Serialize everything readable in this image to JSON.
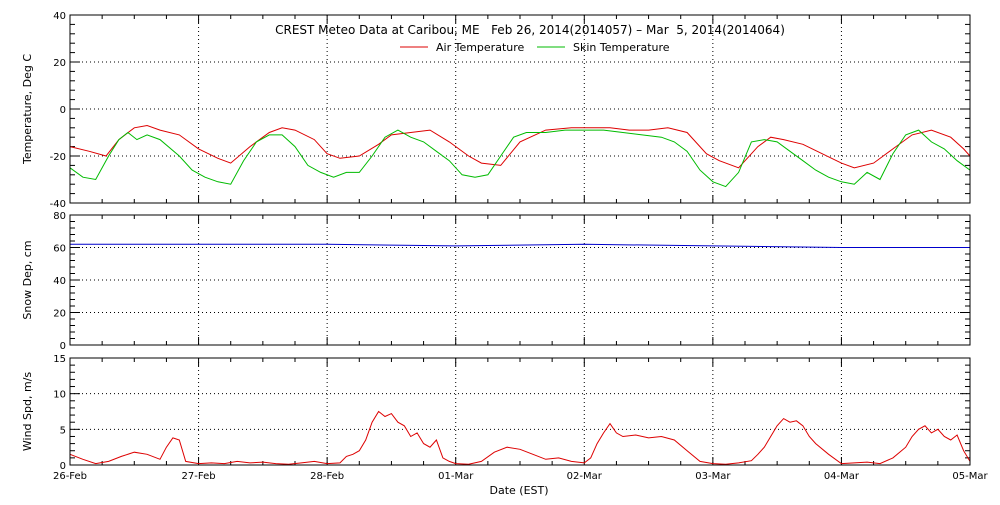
{
  "title": "CREST Meteo Data at Caribou, ME   Feb 26, 2014(2014057) – Mar  5, 2014(2014064)",
  "xlabel": "Date (EST)",
  "colors": {
    "air": "#dd0000",
    "skin": "#00bb00",
    "snow": "#0000cc",
    "wind": "#dd0000",
    "axes": "#000000"
  },
  "chart_data": [
    {
      "type": "line",
      "panel": "temperature",
      "ylabel": "Temperature, Deg C",
      "ylim": [
        -40,
        40
      ],
      "yticks": [
        "-40",
        "-20",
        "0",
        "20",
        "40"
      ],
      "xlim": [
        0,
        7
      ],
      "xticks": [
        "26-Feb",
        "27-Feb",
        "28-Feb",
        "01-Mar",
        "02-Mar",
        "03-Mar",
        "04-Mar",
        "05-Mar"
      ],
      "grid": true,
      "legend_position": "top-center",
      "series": [
        {
          "name": "Air Temperature",
          "color": "#dd0000",
          "x": [
            0,
            0.15,
            0.28,
            0.38,
            0.5,
            0.6,
            0.7,
            0.85,
            1.0,
            1.15,
            1.25,
            1.4,
            1.55,
            1.65,
            1.75,
            1.9,
            2.0,
            2.1,
            2.25,
            2.4,
            2.5,
            2.65,
            2.8,
            2.95,
            3.1,
            3.2,
            3.35,
            3.5,
            3.7,
            3.9,
            4.0,
            4.2,
            4.35,
            4.5,
            4.65,
            4.8,
            4.95,
            5.05,
            5.2,
            5.35,
            5.45,
            5.55,
            5.7,
            5.85,
            6.0,
            6.1,
            6.25,
            6.4,
            6.55,
            6.7,
            6.85,
            6.95,
            7.0
          ],
          "y": [
            -16,
            -18,
            -20,
            -13,
            -8,
            -7,
            -9,
            -11,
            -17,
            -21,
            -23,
            -16,
            -10,
            -8,
            -9,
            -13,
            -19,
            -21,
            -20,
            -15,
            -11,
            -10,
            -9,
            -14,
            -20,
            -23,
            -24,
            -14,
            -9,
            -8,
            -8,
            -8,
            -9,
            -9,
            -8,
            -10,
            -19,
            -22,
            -25,
            -16,
            -12,
            -13,
            -15,
            -19,
            -23,
            -25,
            -23,
            -17,
            -11,
            -9,
            -12,
            -17,
            -20
          ]
        },
        {
          "name": "Skin Temperature",
          "color": "#00bb00",
          "x": [
            0,
            0.1,
            0.2,
            0.3,
            0.38,
            0.45,
            0.52,
            0.6,
            0.7,
            0.85,
            0.95,
            1.05,
            1.15,
            1.25,
            1.35,
            1.45,
            1.55,
            1.65,
            1.75,
            1.85,
            1.95,
            2.05,
            2.15,
            2.25,
            2.35,
            2.45,
            2.55,
            2.65,
            2.75,
            2.85,
            2.95,
            3.05,
            3.15,
            3.25,
            3.35,
            3.45,
            3.55,
            3.7,
            3.85,
            4.0,
            4.15,
            4.3,
            4.45,
            4.6,
            4.7,
            4.8,
            4.9,
            5.0,
            5.1,
            5.2,
            5.3,
            5.4,
            5.5,
            5.6,
            5.7,
            5.8,
            5.9,
            6.0,
            6.1,
            6.2,
            6.3,
            6.4,
            6.5,
            6.6,
            6.7,
            6.8,
            6.9,
            7.0
          ],
          "y": [
            -25,
            -29,
            -30,
            -20,
            -13,
            -10,
            -13,
            -11,
            -13,
            -20,
            -26,
            -29,
            -31,
            -32,
            -22,
            -14,
            -11,
            -11,
            -16,
            -24,
            -27,
            -29,
            -27,
            -27,
            -20,
            -12,
            -9,
            -12,
            -14,
            -18,
            -22,
            -28,
            -29,
            -28,
            -20,
            -12,
            -10,
            -10,
            -9,
            -9,
            -9,
            -10,
            -11,
            -12,
            -14,
            -18,
            -26,
            -31,
            -33,
            -27,
            -14,
            -13,
            -14,
            -18,
            -22,
            -26,
            -29,
            -31,
            -32,
            -27,
            -30,
            -19,
            -11,
            -9,
            -14,
            -17,
            -22,
            -26
          ]
        }
      ]
    },
    {
      "type": "line",
      "panel": "snow",
      "ylabel": "Snow Dep, cm",
      "ylim": [
        0,
        80
      ],
      "yticks": [
        "0",
        "20",
        "40",
        "60",
        "80"
      ],
      "xlim": [
        0,
        7
      ],
      "grid": true,
      "series": [
        {
          "name": "",
          "color": "#0000cc",
          "x": [
            0,
            1,
            2,
            3,
            4,
            5,
            6,
            7
          ],
          "y": [
            62,
            62,
            62,
            61,
            62,
            61,
            60,
            60
          ]
        }
      ]
    },
    {
      "type": "line",
      "panel": "wind",
      "ylabel": "Wind Spd, m/s",
      "ylim": [
        0,
        15
      ],
      "yticks": [
        "0",
        "5",
        "10",
        "15"
      ],
      "xlim": [
        0,
        7
      ],
      "grid": true,
      "series": [
        {
          "name": "",
          "color": "#dd0000",
          "x": [
            0,
            0.1,
            0.2,
            0.3,
            0.4,
            0.5,
            0.6,
            0.7,
            0.75,
            0.8,
            0.85,
            0.9,
            1.0,
            1.1,
            1.2,
            1.3,
            1.4,
            1.5,
            1.6,
            1.7,
            1.8,
            1.9,
            2.0,
            2.1,
            2.15,
            2.2,
            2.25,
            2.3,
            2.35,
            2.4,
            2.45,
            2.5,
            2.55,
            2.6,
            2.65,
            2.7,
            2.75,
            2.8,
            2.85,
            2.9,
            2.95,
            3.0,
            3.1,
            3.2,
            3.3,
            3.4,
            3.5,
            3.6,
            3.7,
            3.8,
            3.9,
            4.0,
            4.05,
            4.1,
            4.15,
            4.2,
            4.25,
            4.3,
            4.4,
            4.5,
            4.6,
            4.7,
            4.8,
            4.9,
            5.0,
            5.1,
            5.2,
            5.3,
            5.35,
            5.4,
            5.45,
            5.5,
            5.55,
            5.6,
            5.65,
            5.7,
            5.75,
            5.8,
            5.9,
            6.0,
            6.1,
            6.2,
            6.3,
            6.4,
            6.5,
            6.55,
            6.6,
            6.65,
            6.7,
            6.75,
            6.8,
            6.85,
            6.9,
            6.95,
            7.0
          ],
          "y": [
            1.5,
            0.8,
            0.2,
            0.5,
            1.2,
            1.8,
            1.5,
            0.8,
            2.5,
            3.8,
            3.5,
            0.5,
            0.2,
            0.3,
            0.2,
            0.5,
            0.3,
            0.4,
            0.2,
            0.1,
            0.3,
            0.5,
            0.2,
            0.3,
            1.2,
            1.5,
            2.0,
            3.5,
            6.0,
            7.5,
            6.8,
            7.2,
            6.0,
            5.5,
            4.0,
            4.5,
            3.0,
            2.5,
            3.5,
            1.0,
            0.5,
            0.2,
            0.1,
            0.5,
            1.8,
            2.5,
            2.2,
            1.5,
            0.8,
            1.0,
            0.5,
            0.3,
            1.0,
            3.0,
            4.5,
            5.8,
            4.5,
            4.0,
            4.2,
            3.8,
            4.0,
            3.5,
            2.0,
            0.5,
            0.2,
            0.1,
            0.3,
            0.6,
            1.5,
            2.5,
            4.0,
            5.5,
            6.5,
            6.0,
            6.2,
            5.5,
            4.0,
            3.0,
            1.5,
            0.2,
            0.3,
            0.4,
            0.2,
            1.0,
            2.5,
            4.0,
            5.0,
            5.5,
            4.5,
            5.0,
            4.0,
            3.5,
            4.2,
            2.0,
            0.5
          ]
        }
      ]
    }
  ]
}
